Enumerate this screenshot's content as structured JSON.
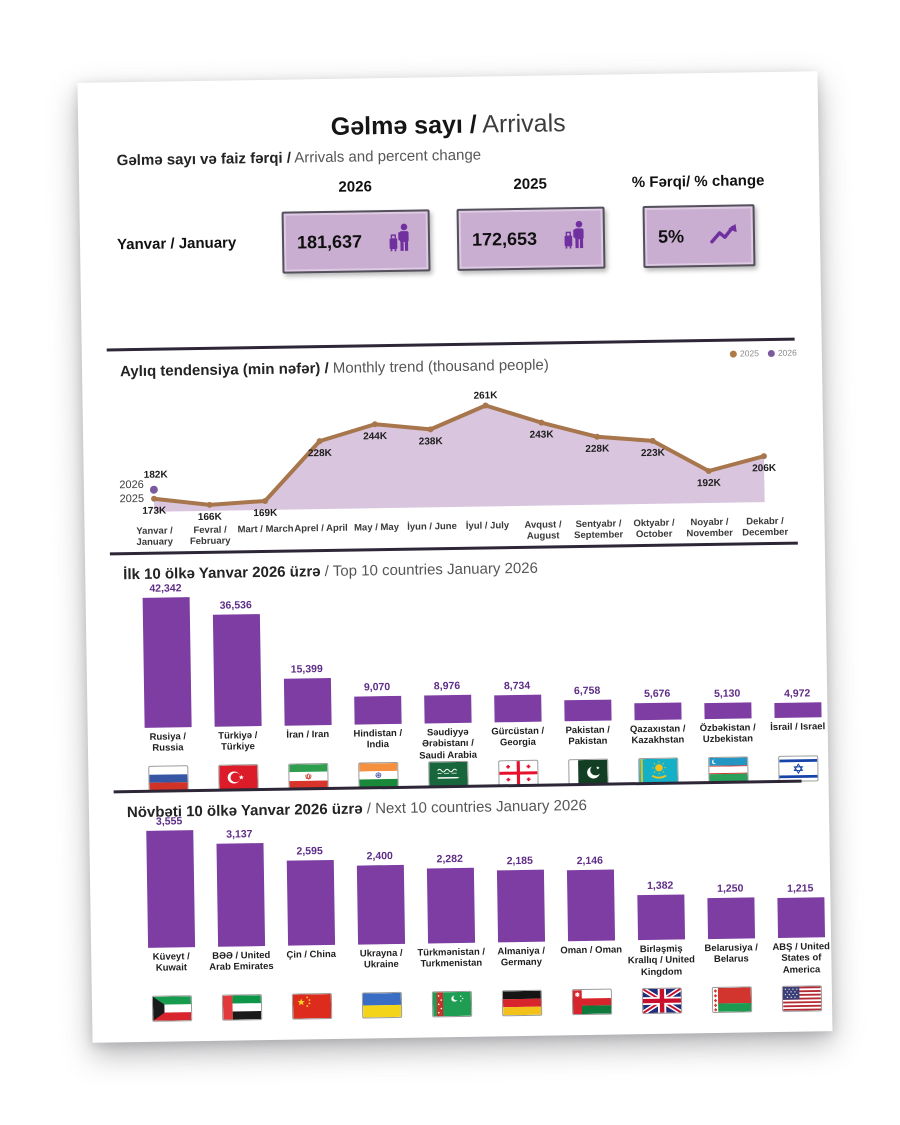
{
  "header": {
    "title_az": "Gəlmə sayı /",
    "title_en": " Arrivals"
  },
  "kpi": {
    "subtitle_az": "Gəlmə sayı və faiz fərqi /",
    "subtitle_en": " Arrivals and percent change",
    "col_2026": "2026",
    "col_2025": "2025",
    "col_change": "% Fərqi/ % change",
    "row_label": "Yanvar / January",
    "value_2026": "181,637",
    "value_2025": "172,653",
    "change_value": "5%",
    "traveler_icon": "traveler-with-luggage-icon",
    "trend_icon": "trend-up-arrow-icon"
  },
  "colors": {
    "accent_purple": "#7030a0",
    "bar_purple": "#7d3da2",
    "bar_value_label": "#5e2d87",
    "kpi_box_fill": "#c9aed1",
    "kpi_box_border": "#55515c",
    "trend_line_2025": "#a8764d",
    "trend_point_2026": "#7a5c9e",
    "trend_area": "#d9c6de",
    "divider": "#2c2637"
  },
  "chart_data": [
    {
      "id": "monthly-trend",
      "type": "area",
      "title_az": "Aylıq tendensiya (min nəfər) /",
      "title_en": " Monthly trend (thousand people)",
      "legend": [
        {
          "label": "2025",
          "color": "#ad7a48"
        },
        {
          "label": "2026",
          "color": "#7a5c9e"
        }
      ],
      "legend_position": "top-right",
      "year_axis": [
        "2026",
        "2025"
      ],
      "ylim": [
        160,
        270
      ],
      "grid": false,
      "categories": [
        "Yanvar / January",
        "Fevral / February",
        "Mart / March",
        "Aprel / April",
        "May / May",
        "İyun / June",
        "İyul / July",
        "Avqust / August",
        "Sentyabr / September",
        "Oktyabr / October",
        "Noyabr / November",
        "Dekabr / December"
      ],
      "series": [
        {
          "name": "2025",
          "values": [
            173,
            166,
            169,
            228,
            244,
            238,
            261,
            243,
            228,
            223,
            192,
            206
          ],
          "labels": [
            "173K",
            "166K",
            "169K",
            "228K",
            "244K",
            "238K",
            "261K",
            "243K",
            "228K",
            "223K",
            "192K",
            "206K"
          ],
          "color": "#a8764d"
        },
        {
          "name": "2026",
          "values": [
            182
          ],
          "labels": [
            "182K"
          ],
          "color": "#7a5c9e"
        }
      ]
    },
    {
      "id": "top10-countries",
      "type": "bar",
      "title_az": "İlk 10 ölkə Yanvar 2026 üzrə",
      "title_sep": " / ",
      "title_en": "Top 10 countries January 2026",
      "bars": [
        {
          "label": "42,342",
          "value": 42342,
          "name": "Rusiya / Russia",
          "flag": "russia"
        },
        {
          "label": "36,536",
          "value": 36536,
          "name": "Türkiyə / Türkiye",
          "flag": "turkiye"
        },
        {
          "label": "15,399",
          "value": 15399,
          "name": "İran / Iran",
          "flag": "iran"
        },
        {
          "label": "9,070",
          "value": 9070,
          "name": "Hindistan / India",
          "flag": "india"
        },
        {
          "label": "8,976",
          "value": 8976,
          "name": "Səudiyyə Ərəbistanı / Saudi Arabia",
          "flag": "saudi-arabia"
        },
        {
          "label": "8,734",
          "value": 8734,
          "name": "Gürcüstan / Georgia",
          "flag": "georgia"
        },
        {
          "label": "6,758",
          "value": 6758,
          "name": "Pakistan / Pakistan",
          "flag": "pakistan"
        },
        {
          "label": "5,676",
          "value": 5676,
          "name": "Qazaxıstan / Kazakhstan",
          "flag": "kazakhstan"
        },
        {
          "label": "5,130",
          "value": 5130,
          "name": "Özbəkistan / Uzbekistan",
          "flag": "uzbekistan"
        },
        {
          "label": "4,972",
          "value": 4972,
          "name": "İsrail / Israel",
          "flag": "israel"
        }
      ]
    },
    {
      "id": "next10-countries",
      "type": "bar",
      "title_az": "Növbəti 10 ölkə Yanvar 2026 üzrə",
      "title_sep": " / ",
      "title_en": "Next 10 countries January 2026",
      "bars": [
        {
          "label": "3,555",
          "value": 3555,
          "name": "Küveyt / Kuwait",
          "flag": "kuwait"
        },
        {
          "label": "3,137",
          "value": 3137,
          "name": "BƏƏ / United Arab Emirates",
          "flag": "uae"
        },
        {
          "label": "2,595",
          "value": 2595,
          "name": "Çin / China",
          "flag": "china"
        },
        {
          "label": "2,400",
          "value": 2400,
          "name": "Ukrayna / Ukraine",
          "flag": "ukraine"
        },
        {
          "label": "2,282",
          "value": 2282,
          "name": "Türkmənistan / Turkmenistan",
          "flag": "turkmenistan"
        },
        {
          "label": "2,185",
          "value": 2185,
          "name": "Almaniya / Germany",
          "flag": "germany"
        },
        {
          "label": "2,146",
          "value": 2146,
          "name": "Oman / Oman",
          "flag": "oman"
        },
        {
          "label": "1,382",
          "value": 1382,
          "name": "Birləşmiş Krallıq / United Kingdom",
          "flag": "united-kingdom"
        },
        {
          "label": "1,250",
          "value": 1250,
          "name": "Belarusiya / Belarus",
          "flag": "belarus"
        },
        {
          "label": "1,215",
          "value": 1215,
          "name": "ABŞ / United States of America",
          "flag": "usa"
        }
      ]
    }
  ]
}
